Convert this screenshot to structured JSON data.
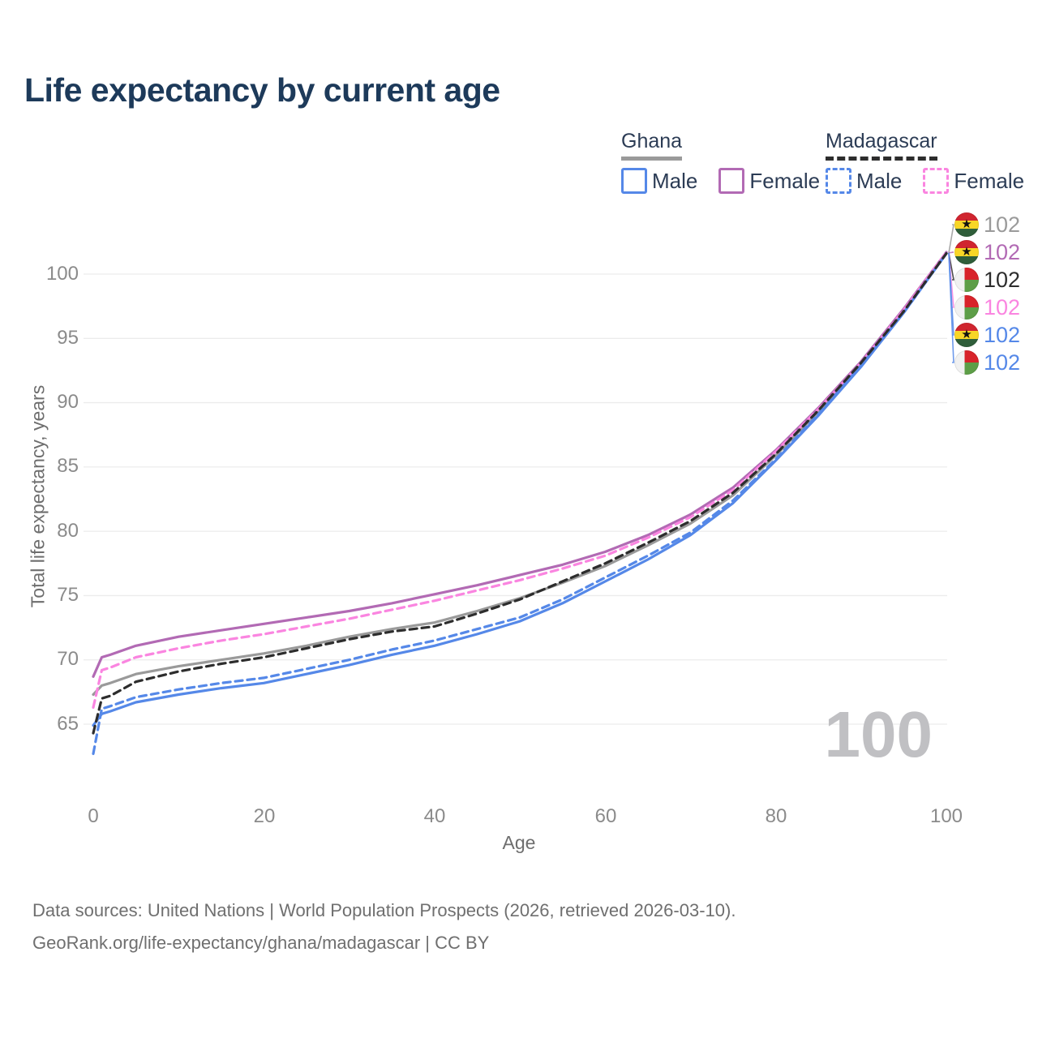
{
  "title": "Life expectancy by current age",
  "watermark": "100",
  "legend": {
    "groups": [
      {
        "name": "Ghana",
        "line_style": "solid",
        "line_color": "#9a9a9a",
        "items": [
          {
            "label": "Male",
            "color": "#5588e8"
          },
          {
            "label": "Female",
            "color": "#b26ab4"
          }
        ]
      },
      {
        "name": "Madagascar",
        "line_style": "dashed",
        "line_color": "#2d2d2d",
        "items": [
          {
            "label": "Male",
            "color": "#5588e8"
          },
          {
            "label": "Female",
            "color": "#fa85e0"
          }
        ]
      }
    ]
  },
  "axes": {
    "x": {
      "label": "Age",
      "ticks": [
        "0",
        "20",
        "40",
        "60",
        "80",
        "100"
      ],
      "range": [
        0,
        100
      ]
    },
    "y": {
      "label": "Total life expectancy, years",
      "ticks": [
        "65",
        "70",
        "75",
        "80",
        "85",
        "90",
        "95",
        "100"
      ],
      "range": [
        62,
        102.5
      ]
    }
  },
  "right_labels": [
    {
      "flag": "ghana",
      "series": "Ghana — both sexes",
      "value": "102",
      "color": "#9a9a9a"
    },
    {
      "flag": "ghana",
      "series": "Ghana — Female",
      "value": "102",
      "color": "#b26ab4"
    },
    {
      "flag": "madagascar",
      "series": "Madagascar — both sexes",
      "value": "102",
      "color": "#2d2d2d"
    },
    {
      "flag": "madagascar",
      "series": "Madagascar — Female",
      "value": "102",
      "color": "#fa85e0"
    },
    {
      "flag": "ghana",
      "series": "Ghana — Male",
      "value": "102",
      "color": "#5588e8"
    },
    {
      "flag": "madagascar",
      "series": "Madagascar — Male",
      "value": "102",
      "color": "#5588e8"
    }
  ],
  "chart_data": {
    "type": "line",
    "title": "Life expectancy by current age",
    "xlabel": "Age",
    "ylabel": "Total life expectancy, years",
    "xlim": [
      0,
      100
    ],
    "ylim": [
      62,
      102.5
    ],
    "grid": "horizontal-only",
    "legend_position": "top-right",
    "x": [
      0,
      1,
      2,
      5,
      10,
      15,
      20,
      25,
      30,
      35,
      40,
      45,
      50,
      55,
      60,
      65,
      70,
      75,
      80,
      85,
      90,
      95,
      100
    ],
    "series": [
      {
        "name": "Ghana — both sexes",
        "country": "Ghana",
        "sex": "both",
        "color": "#9a9a9a",
        "dash": false,
        "values": [
          67.3,
          68.0,
          68.2,
          68.9,
          69.5,
          70.0,
          70.5,
          71.1,
          71.8,
          72.4,
          72.9,
          73.8,
          74.8,
          76.0,
          77.3,
          78.9,
          80.6,
          82.8,
          85.9,
          89.3,
          93.0,
          97.1,
          101.6
        ]
      },
      {
        "name": "Ghana — Female",
        "country": "Ghana",
        "sex": "female",
        "color": "#b26ab4",
        "dash": false,
        "values": [
          68.7,
          70.2,
          70.4,
          71.1,
          71.8,
          72.3,
          72.8,
          73.3,
          73.8,
          74.4,
          75.1,
          75.8,
          76.6,
          77.4,
          78.4,
          79.7,
          81.3,
          83.4,
          86.3,
          89.6,
          93.2,
          97.3,
          101.7
        ]
      },
      {
        "name": "Ghana — Male",
        "country": "Ghana",
        "sex": "male",
        "color": "#5588e8",
        "dash": false,
        "values": [
          64.9,
          65.8,
          66.0,
          66.7,
          67.3,
          67.8,
          68.2,
          68.9,
          69.6,
          70.4,
          71.1,
          72.0,
          73.0,
          74.4,
          76.1,
          77.8,
          79.7,
          82.2,
          85.5,
          89.0,
          92.8,
          97.0,
          101.6
        ]
      },
      {
        "name": "Madagascar — Female",
        "country": "Madagascar",
        "sex": "female",
        "color": "#fa85e0",
        "dash": true,
        "values": [
          66.3,
          69.2,
          69.4,
          70.2,
          70.9,
          71.5,
          72.0,
          72.6,
          73.2,
          73.9,
          74.6,
          75.4,
          76.2,
          77.1,
          78.1,
          79.5,
          81.1,
          83.2,
          86.2,
          89.5,
          93.1,
          97.2,
          101.7
        ]
      },
      {
        "name": "Madagascar — Male",
        "country": "Madagascar",
        "sex": "male",
        "color": "#5588e8",
        "dash": true,
        "values": [
          62.7,
          66.2,
          66.4,
          67.1,
          67.7,
          68.2,
          68.6,
          69.3,
          70.0,
          70.8,
          71.5,
          72.4,
          73.3,
          74.7,
          76.4,
          78.1,
          79.9,
          82.4,
          85.6,
          89.1,
          92.9,
          97.0,
          101.6
        ]
      },
      {
        "name": "Madagascar — both sexes",
        "country": "Madagascar",
        "sex": "both",
        "color": "#2d2d2d",
        "dash": true,
        "values": [
          64.3,
          67.0,
          67.2,
          68.3,
          69.1,
          69.7,
          70.2,
          70.9,
          71.6,
          72.2,
          72.6,
          73.6,
          74.7,
          76.1,
          77.5,
          79.1,
          80.8,
          83.0,
          86.0,
          89.4,
          93.1,
          97.1,
          101.6
        ]
      }
    ]
  },
  "footer": {
    "line1": "Data sources: United Nations | World Population Prospects (2026, retrieved 2026-03-10).",
    "line2": "GeoRank.org/life-expectancy/ghana/madagascar | CC BY"
  }
}
